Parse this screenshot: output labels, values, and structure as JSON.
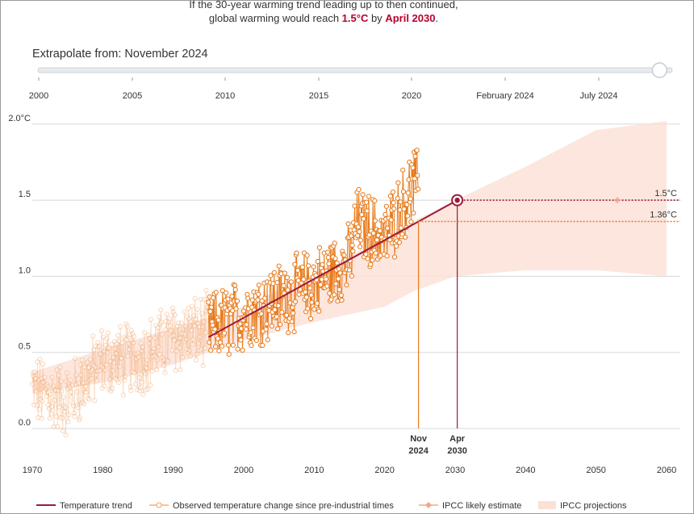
{
  "headline": {
    "line1": "If the 30-year warming trend leading up to then continued,",
    "line2_prefix": "global warming would reach ",
    "line2_value": "1.5°C",
    "line2_mid": " by ",
    "line2_date": "April 2030",
    "line2_suffix": "."
  },
  "slider": {
    "label": "Extrapolate from: November 2024",
    "ticks": [
      "2000",
      "2005",
      "2010",
      "2015",
      "2020",
      "February 2024",
      "July 2024"
    ],
    "position": 0.98
  },
  "colors": {
    "trend": "#9b1b3a",
    "observed": "#f0a060",
    "observed_dark": "#e87a1a",
    "ipcc_band": "#fbe0d6",
    "grid": "#d8d8d8"
  },
  "chart_data": {
    "type": "line",
    "title": "",
    "xlabel": "",
    "ylabel": "",
    "xlim": [
      1970,
      2060
    ],
    "ylim": [
      -0.2,
      2.1
    ],
    "x_ticks": [
      "1970",
      "1980",
      "1990",
      "2000",
      "2010",
      "2020",
      "2030",
      "2040",
      "2050",
      "2060"
    ],
    "y_ticks": [
      "0.0",
      "0.5",
      "1.0",
      "1.5",
      "2.0°C"
    ],
    "series": [
      {
        "name": "Temperature trend",
        "x": [
          1995,
          2030.3
        ],
        "y": [
          0.6,
          1.5
        ]
      },
      {
        "name": "Observed temperature change since pre-industrial times",
        "monthly_range": [
          1970,
          2024.8
        ],
        "faded_before": 1995,
        "description_points": [
          {
            "x": 1970,
            "y": 0.25
          },
          {
            "x": 1975,
            "y": 0.18
          },
          {
            "x": 1980,
            "y": 0.45
          },
          {
            "x": 1985,
            "y": 0.45
          },
          {
            "x": 1990,
            "y": 0.6
          },
          {
            "x": 1995,
            "y": 0.65
          },
          {
            "x": 2000,
            "y": 0.75
          },
          {
            "x": 2005,
            "y": 0.85
          },
          {
            "x": 2010,
            "y": 0.95
          },
          {
            "x": 2015,
            "y": 1.1
          },
          {
            "x": 2016,
            "y": 1.35
          },
          {
            "x": 2020,
            "y": 1.25
          },
          {
            "x": 2023.5,
            "y": 1.55
          },
          {
            "x": 2024.3,
            "y": 1.6
          }
        ]
      },
      {
        "name": "IPCC likely estimate",
        "x": [
          2030.3,
          2053
        ],
        "y": [
          1.5,
          1.5
        ]
      },
      {
        "name": "IPCC projections",
        "type": "band",
        "x": [
          1970,
          1980,
          1990,
          2000,
          2010,
          2020,
          2024,
          2030,
          2040,
          2050,
          2060
        ],
        "lower": [
          0.23,
          0.3,
          0.42,
          0.58,
          0.7,
          0.8,
          0.9,
          1.0,
          1.04,
          1.04,
          1.0
        ],
        "upper": [
          0.37,
          0.52,
          0.66,
          0.8,
          1.02,
          1.25,
          1.36,
          1.5,
          1.72,
          1.96,
          2.02
        ]
      }
    ],
    "annotations": [
      {
        "text": "1.5°C",
        "y": 1.5,
        "color": "#9b1b3a"
      },
      {
        "text": "1.36°C",
        "y": 1.36,
        "color": "#e87a1a"
      },
      {
        "text_line1": "Nov",
        "text_line2": "2024",
        "x": 2024.8,
        "color": "#e87a1a"
      },
      {
        "text_line1": "Apr",
        "text_line2": "2030",
        "x": 2030.3,
        "color": "#9b1b3a"
      }
    ]
  },
  "legend": [
    {
      "label": "Temperature trend"
    },
    {
      "label": "Observed temperature change since pre-industrial times"
    },
    {
      "label": "IPCC likely estimate"
    },
    {
      "label": "IPCC projections"
    }
  ]
}
